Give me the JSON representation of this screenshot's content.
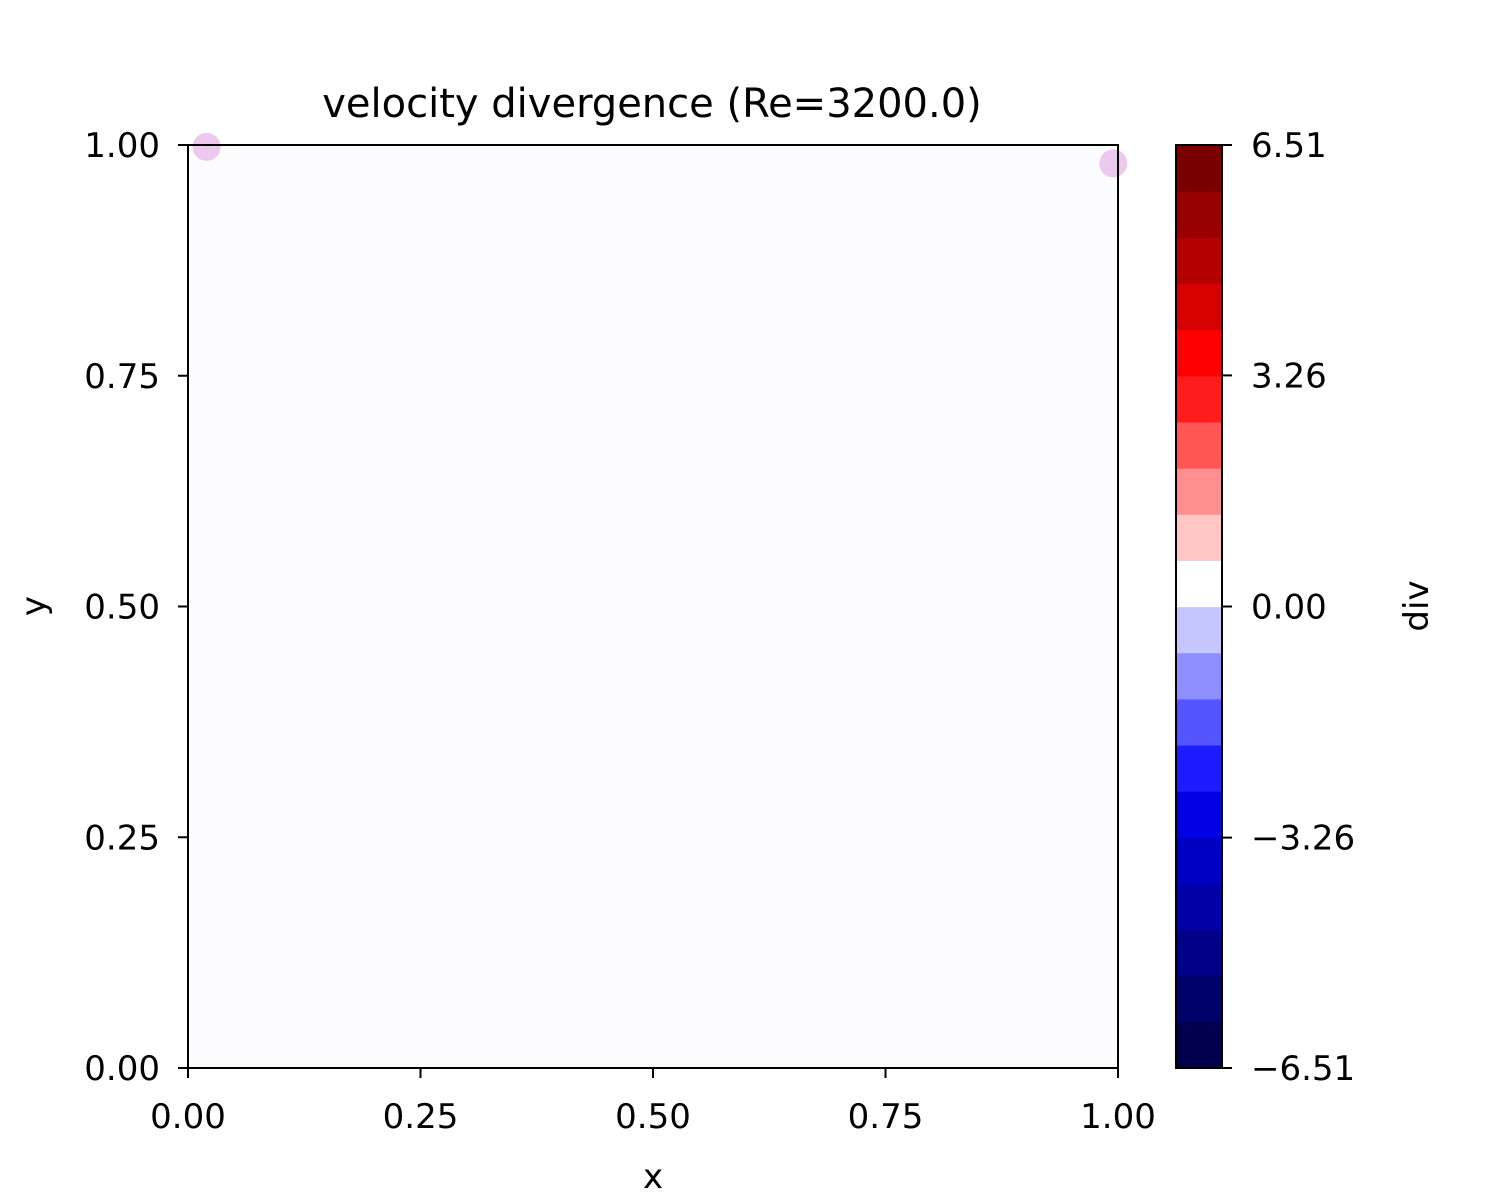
{
  "chart_data": {
    "type": "heatmap",
    "title": "velocity divergence (Re=3200.0)",
    "xlabel": "x",
    "ylabel": "y",
    "xlim": [
      0.0,
      1.0
    ],
    "ylim": [
      0.0,
      1.0
    ],
    "x_ticks": [
      "0.00",
      "0.25",
      "0.50",
      "0.75",
      "1.00"
    ],
    "y_ticks": [
      "0.00",
      "0.25",
      "0.50",
      "0.75",
      "1.00"
    ],
    "field_background_color": "#fcfcff",
    "field_description_value": 0.0,
    "hotspots": [
      {
        "x": 0.02,
        "y": 0.998,
        "value": "nonzero",
        "color": "#cc66cc"
      },
      {
        "x": 0.995,
        "y": 0.98,
        "value": "nonzero",
        "color": "#cc66cc"
      }
    ],
    "colorbar": {
      "label": "div",
      "vmin": -6.51,
      "vmax": 6.51,
      "ticks": [
        -6.51,
        -3.26,
        0.0,
        3.26,
        6.51
      ],
      "tick_labels": [
        "−6.51",
        "−3.26",
        "0.00",
        "3.26",
        "6.51"
      ],
      "colormap": "seismic",
      "levels": [
        "#00004c",
        "#00006a",
        "#000088",
        "#0000a7",
        "#0000c5",
        "#0000e3",
        "#1c1cff",
        "#5555ff",
        "#8e8eff",
        "#c6c6ff",
        "#fffefe",
        "#ffc6c6",
        "#ff8e8e",
        "#ff5555",
        "#ff1c1c",
        "#fe0000",
        "#d60000",
        "#b60000",
        "#980000",
        "#7a0000"
      ]
    }
  }
}
